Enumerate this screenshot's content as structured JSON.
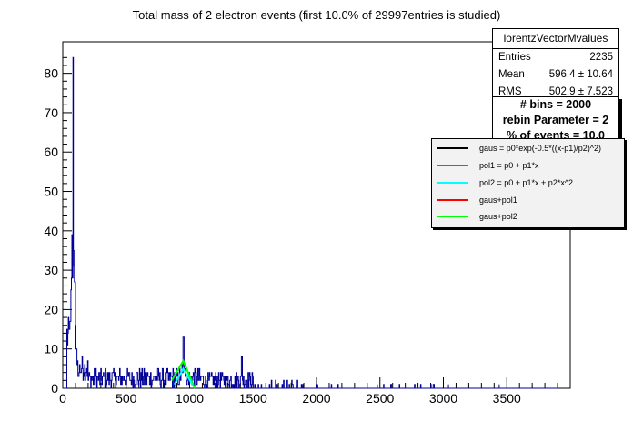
{
  "chart_data": {
    "type": "histogram",
    "title": "Total mass of 2 electron events (first 10.0% of 29997entries is studied)",
    "xlim": [
      0,
      4000
    ],
    "ylim": [
      0,
      88
    ],
    "x_ticks": [
      0,
      500,
      1000,
      1500,
      2000,
      2500,
      3000,
      3500
    ],
    "y_ticks": [
      0,
      10,
      20,
      30,
      40,
      50,
      60,
      70,
      80
    ],
    "histogram_color": "#000099",
    "peaks": [
      {
        "x": 80,
        "y": 84
      },
      {
        "x": 95,
        "y": 27
      },
      {
        "x": 950,
        "y": 13
      },
      {
        "x": 1410,
        "y": 8
      }
    ],
    "fits": [
      {
        "name": "gaus+pol2",
        "color": "#00ff00",
        "x": [
          860,
          950,
          1040
        ],
        "y": [
          2,
          7,
          0
        ]
      },
      {
        "name": "pol2 = p0 + p1*x + p2*x^2",
        "color": "#00ffff",
        "x": [
          880,
          950,
          1020
        ],
        "y": [
          1,
          5,
          1
        ]
      }
    ]
  },
  "stats": {
    "name": "lorentzVectorMvalues",
    "entries_label": "Entries",
    "entries": "2235",
    "mean_label": "Mean",
    "mean": "596.4 ±  10.64",
    "rms_label": "RMS",
    "rms": "502.9 ±  7.523"
  },
  "info": {
    "bins": "# bins = 2000",
    "rebin": "rebin Parameter = 2",
    "percent": "% of events = 10.0"
  },
  "legend": [
    {
      "label": "gaus = p0*exp(-0.5*((x-p1)/p2)^2)",
      "color": "#000000"
    },
    {
      "label": "pol1 = p0 + p1*x",
      "color": "#ff00ff"
    },
    {
      "label": "pol2 = p0 + p1*x + p2*x^2",
      "color": "#00ffff"
    },
    {
      "label": "gaus+pol1",
      "color": "#ff0000"
    },
    {
      "label": "gaus+pol2",
      "color": "#00ff00"
    }
  ]
}
